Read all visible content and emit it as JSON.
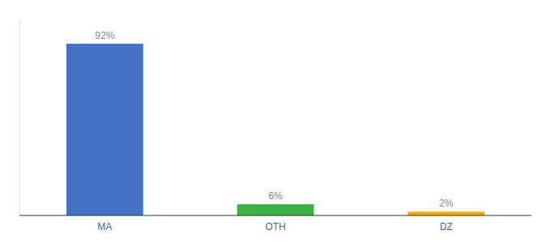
{
  "chart_data": {
    "type": "bar",
    "categories": [
      "MA",
      "OTH",
      "DZ"
    ],
    "values": [
      92,
      6,
      2
    ],
    "value_labels": [
      "92%",
      "6%",
      "2%"
    ],
    "colors": [
      "#4472C4",
      "#3CB043",
      "#FFA500"
    ],
    "ylim": [
      0,
      105
    ],
    "data_labels": true,
    "tick_labels": "x"
  }
}
